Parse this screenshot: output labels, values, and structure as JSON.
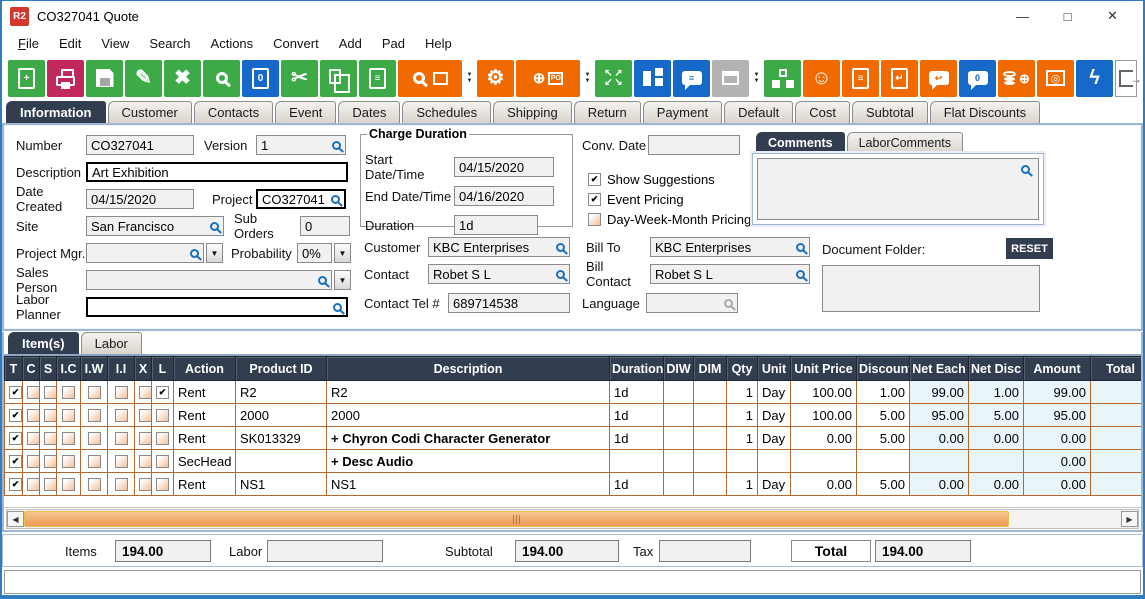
{
  "window": {
    "title": "CO327041 Quote",
    "logo_text": "R2",
    "controls": [
      {
        "name": "minimize",
        "glyph": "—"
      },
      {
        "name": "maximize",
        "glyph": "□"
      },
      {
        "name": "close",
        "glyph": "✕"
      }
    ]
  },
  "icons": {
    "check": "✔",
    "dd_arrow": "▼",
    "combo_arrow": "▼",
    "scroll_left": "◀",
    "scroll_right": "▶",
    "exit_arrow": "→",
    "arrows_out": [
      "↖",
      "↗",
      "↙",
      "↘"
    ]
  },
  "colors": {
    "green": "#3cab47",
    "red": "#c1295b",
    "blue": "#1668c9",
    "orange": "#f06a00",
    "disabled": "#b3b3b3",
    "header_dark": "#323e4f",
    "cell_border": "#b2682f",
    "tint": "#e9f5f9",
    "scroll_thumb": "#ec9a55",
    "window_border": "#2e7dc2"
  },
  "menu": [
    {
      "label": "File",
      "mnemonic": 0
    },
    {
      "label": "Edit",
      "mnemonic": -1
    },
    {
      "label": "View",
      "mnemonic": -1
    },
    {
      "label": "Search",
      "mnemonic": -1
    },
    {
      "label": "Actions",
      "mnemonic": -1
    },
    {
      "label": "Convert",
      "mnemonic": -1
    },
    {
      "label": "Add",
      "mnemonic": -1
    },
    {
      "label": "Pad",
      "mnemonic": -1
    },
    {
      "label": "Help",
      "mnemonic": -1
    }
  ],
  "toolbar": [
    {
      "name": "new-quote",
      "color": "green",
      "kind": "doc",
      "txt": "+"
    },
    {
      "name": "print",
      "color": "red",
      "kind": "print"
    },
    {
      "name": "save",
      "color": "green",
      "kind": "floppy"
    },
    {
      "name": "edit",
      "color": "green",
      "glyph": "✎"
    },
    {
      "name": "delete",
      "color": "green",
      "glyph": "✖"
    },
    {
      "name": "search",
      "color": "green",
      "kind": "mag"
    },
    {
      "name": "copy-document-zero",
      "color": "blue",
      "kind": "doc",
      "txt": "0"
    },
    {
      "name": "cut",
      "color": "green",
      "glyph": "✂"
    },
    {
      "name": "copy",
      "color": "green",
      "kind": "copy"
    },
    {
      "name": "paste",
      "color": "green",
      "kind": "doc",
      "txt": "≡"
    },
    {
      "name": "find-product",
      "color": "orange",
      "kind": "magbox",
      "wide": true,
      "dd": true
    },
    {
      "name": "settings-gears",
      "color": "orange",
      "glyph": "⚙"
    },
    {
      "name": "add-purchase-order",
      "color": "orange",
      "kind": "cartpo",
      "txt": "PO",
      "wide": true,
      "dd": true
    },
    {
      "name": "expand",
      "color": "green",
      "kind": "arrows"
    },
    {
      "name": "workflow-nodes",
      "color": "blue",
      "kind": "nodes"
    },
    {
      "name": "comment",
      "color": "blue",
      "kind": "bubble",
      "txt": "≡"
    },
    {
      "name": "calendar",
      "color": "gray",
      "kind": "cal",
      "dd": true,
      "disabled": true
    },
    {
      "name": "hierarchy",
      "color": "green",
      "kind": "tree"
    },
    {
      "name": "smiley",
      "color": "orange",
      "glyph": "☺"
    },
    {
      "name": "notes-scroll",
      "color": "orange",
      "kind": "doc",
      "txt": "≡"
    },
    {
      "name": "journal-return",
      "color": "orange",
      "kind": "doc",
      "txt": "↵"
    },
    {
      "name": "box-return",
      "color": "orange",
      "kind": "bubble",
      "txt": "↩"
    },
    {
      "name": "chat-zero",
      "color": "blue",
      "kind": "bubble",
      "txt": "0"
    },
    {
      "name": "add-money-coins",
      "color": "orange",
      "kind": "coins"
    },
    {
      "name": "cash-safe",
      "color": "orange",
      "kind": "safe",
      "txt": "◎"
    },
    {
      "name": "quick-action-lightning",
      "color": "blue",
      "glyph": "ϟ"
    }
  ],
  "tabs": {
    "labels": [
      "Information",
      "Customer",
      "Contacts",
      "Event",
      "Dates",
      "Schedules",
      "Shipping",
      "Return",
      "Payment",
      "Default",
      "Cost",
      "Subtotal",
      "Flat Discounts"
    ],
    "active": 0
  },
  "info": {
    "number": {
      "label": "Number",
      "value": "CO327041"
    },
    "version": {
      "label": "Version",
      "value": "1"
    },
    "description": {
      "label": "Description",
      "value": "Art Exhibition"
    },
    "date_created": {
      "label": "Date Created",
      "value": "04/15/2020"
    },
    "project": {
      "label": "Project",
      "value": "CO327041"
    },
    "site": {
      "label": "Site",
      "value": "San Francisco"
    },
    "sub_orders": {
      "label": "Sub Orders",
      "value": "0"
    },
    "project_mgr": {
      "label": "Project Mgr.",
      "value": ""
    },
    "probability": {
      "label": "Probability",
      "value": "0%"
    },
    "sales_person": {
      "label": "Sales Person",
      "value": ""
    },
    "labor_planner": {
      "label": "Labor Planner",
      "value": ""
    },
    "charge": {
      "title": "Charge Duration",
      "start": {
        "label": "Start Date/Time",
        "value": "04/15/2020"
      },
      "end": {
        "label": "End Date/Time",
        "value": "04/16/2020"
      },
      "duration": {
        "label": "Duration",
        "value": "1d"
      }
    },
    "conv_date": {
      "label": "Conv. Date",
      "value": ""
    },
    "pricing_options": [
      {
        "label": "Show Suggestions",
        "checked": true
      },
      {
        "label": "Event Pricing",
        "checked": true
      },
      {
        "label": "Day-Week-Month Pricing",
        "checked": false
      }
    ],
    "customer": {
      "label": "Customer",
      "value": "KBC Enterprises"
    },
    "bill_to": {
      "label": "Bill To",
      "value": "KBC Enterprises"
    },
    "contact": {
      "label": "Contact",
      "value": "Robet S L"
    },
    "bill_contact": {
      "label": "Bill Contact",
      "value": "Robet S L"
    },
    "contact_tel": {
      "label": "Contact Tel #",
      "value": "689714538"
    },
    "language": {
      "label": "Language",
      "value": ""
    },
    "comments": {
      "tabs": [
        "Comments",
        "LaborComments"
      ],
      "active": 0,
      "text": "",
      "doc_folder_label": "Document Folder:",
      "reset_label": "RESET",
      "folder_text": ""
    }
  },
  "items_section": {
    "tabs": [
      "Item(s)",
      "Labor"
    ],
    "active": 0
  },
  "table": {
    "headers": [
      "T",
      "C",
      "S",
      "I.C",
      "I.W",
      "I.I",
      "X",
      "L",
      "Action",
      "Product ID",
      "Description",
      "Duration",
      "DIW",
      "DIM",
      "Qty",
      "Unit",
      "Unit Price",
      "Discount",
      "Net Each",
      "Net Disc",
      "Amount",
      "Total"
    ],
    "rows": [
      {
        "checks": [
          true,
          false,
          false,
          false,
          false,
          false,
          false,
          true
        ],
        "bold": false,
        "cells": [
          "Rent",
          "R2",
          "R2",
          "1d",
          "",
          "",
          "1",
          "Day",
          "100.00",
          "1.00",
          "99.00",
          "1.00",
          "99.00",
          ""
        ]
      },
      {
        "checks": [
          true,
          false,
          false,
          false,
          false,
          false,
          false,
          false
        ],
        "bold": false,
        "cells": [
          "Rent",
          "2000",
          "2000",
          "1d",
          "",
          "",
          "1",
          "Day",
          "100.00",
          "5.00",
          "95.00",
          "5.00",
          "95.00",
          ""
        ]
      },
      {
        "checks": [
          true,
          false,
          false,
          false,
          false,
          false,
          false,
          false
        ],
        "bold": true,
        "cells": [
          "Rent",
          "SK013329",
          "+  Chyron Codi Character Generator",
          "1d",
          "",
          "",
          "1",
          "Day",
          "0.00",
          "5.00",
          "0.00",
          "0.00",
          "0.00",
          ""
        ]
      },
      {
        "checks": [
          true,
          false,
          false,
          false,
          false,
          false,
          false,
          false
        ],
        "bold": true,
        "cells": [
          "SecHead",
          "",
          "+  Desc Audio",
          "",
          "",
          "",
          "",
          "",
          "",
          "",
          "",
          "",
          "0.00",
          ""
        ]
      },
      {
        "checks": [
          true,
          false,
          false,
          false,
          false,
          false,
          false,
          false
        ],
        "bold": false,
        "cells": [
          "Rent",
          "NS1",
          "NS1",
          "1d",
          "",
          "",
          "1",
          "Day",
          "0.00",
          "5.00",
          "0.00",
          "0.00",
          "0.00",
          ""
        ]
      }
    ]
  },
  "totals": {
    "items": {
      "label": "Items",
      "value": "194.00"
    },
    "labor": {
      "label": "Labor",
      "value": ""
    },
    "subtotal": {
      "label": "Subtotal",
      "value": "194.00"
    },
    "tax": {
      "label": "Tax",
      "value": ""
    },
    "total": {
      "label": "Total",
      "value": "194.00"
    }
  }
}
